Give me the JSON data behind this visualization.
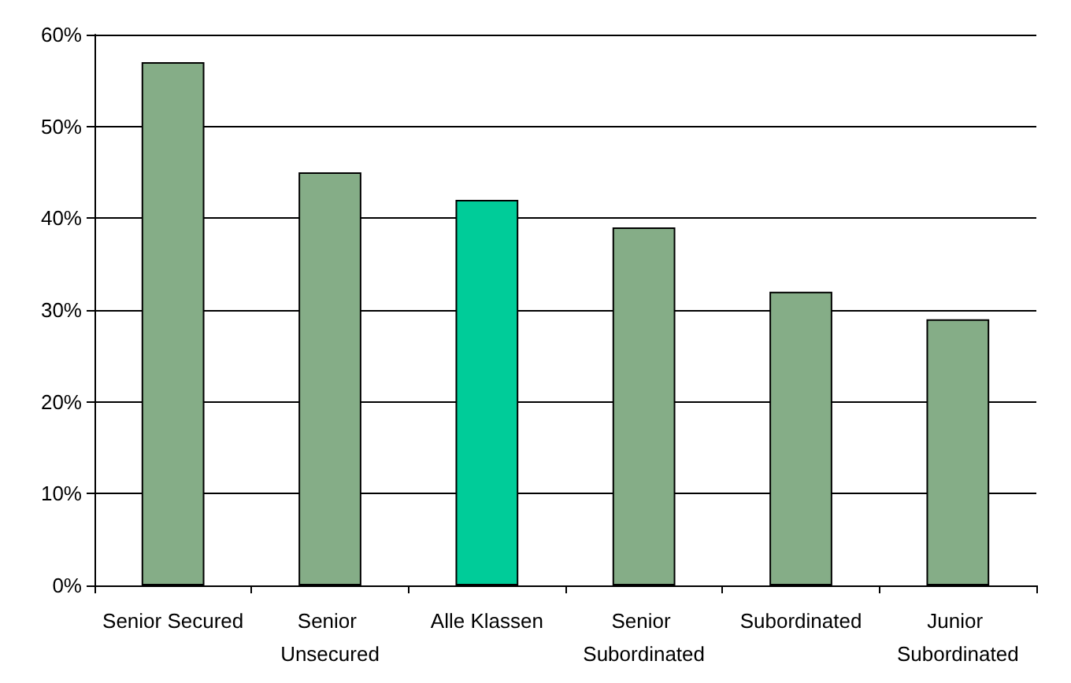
{
  "chart_data": {
    "type": "bar",
    "categories": [
      "Senior Secured",
      "Senior Unsecured",
      "Alle Klassen",
      "Senior Subordinated",
      "Subordinated",
      "Junior Subordinated"
    ],
    "values": [
      57,
      45,
      42,
      39,
      32,
      29
    ],
    "colors": [
      "#85ad87",
      "#85ad87",
      "#00cc99",
      "#85ad87",
      "#85ad87",
      "#85ad87"
    ],
    "ylim": [
      0,
      60
    ],
    "yticks": [
      {
        "value": 0,
        "label": "0%"
      },
      {
        "value": 10,
        "label": "10%"
      },
      {
        "value": 20,
        "label": "20%"
      },
      {
        "value": 30,
        "label": "30%"
      },
      {
        "value": 40,
        "label": "40%"
      },
      {
        "value": 50,
        "label": "50%"
      },
      {
        "value": 60,
        "label": "60%"
      }
    ],
    "grid": "y"
  }
}
